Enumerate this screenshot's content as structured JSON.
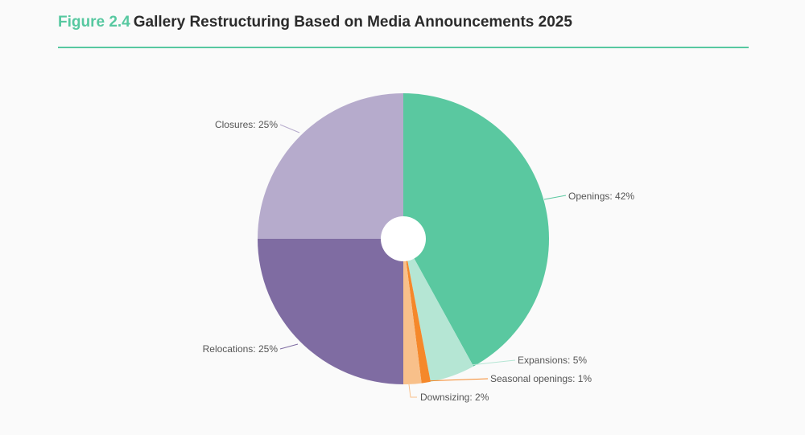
{
  "header": {
    "figure_label": "Figure 2.4",
    "title": "Gallery Restructuring Based on Media Announcements 2025"
  },
  "colors": {
    "accent": "#57c8a0",
    "title_text": "#2b2b2b",
    "label_text": "#555555"
  },
  "chart_data": {
    "type": "pie",
    "style": "donut",
    "title": "Gallery Restructuring Based on Media Announcements 2025",
    "unit": "%",
    "slices": [
      {
        "label": "Openings: 42%",
        "name": "Openings",
        "value": 42,
        "color": "#5ac8a0"
      },
      {
        "label": "Expansions: 5%",
        "name": "Expansions",
        "value": 5,
        "color": "#b5e6d4"
      },
      {
        "label": "Seasonal openings: 1%",
        "name": "Seasonal openings",
        "value": 1,
        "color": "#f5882a"
      },
      {
        "label": "Downsizing: 2%",
        "name": "Downsizing",
        "value": 2,
        "color": "#f8c08a"
      },
      {
        "label": "Relocations: 25%",
        "name": "Relocations",
        "value": 25,
        "color": "#7f6ca2"
      },
      {
        "label": "Closures: 25%",
        "name": "Closures",
        "value": 25,
        "color": "#b6abcc"
      }
    ],
    "legend": "none",
    "labels": "outside-with-leader-lines"
  }
}
